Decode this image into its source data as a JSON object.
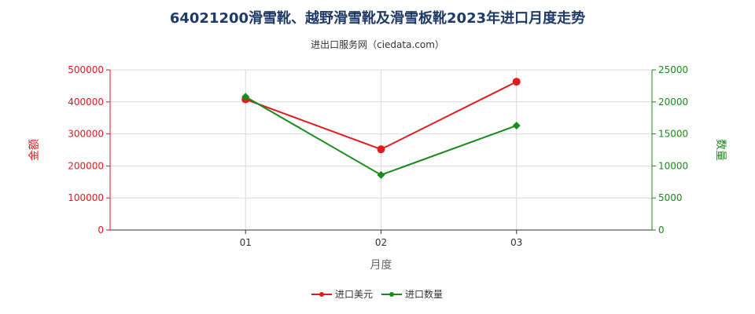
{
  "title": "64021200滑雪靴、越野滑雪靴及滑雪板靴2023年进口月度走势",
  "subtitle": "进出口服务网（ciedata.com）",
  "colors": {
    "left_axis": "#e31a1c",
    "right_axis": "#1a8a1a",
    "usd_series": "#e31a1c",
    "qty_series": "#1a8a1a",
    "grid": "#d9d9d9"
  },
  "chart_data": {
    "type": "line",
    "categories": [
      "01",
      "02",
      "03"
    ],
    "xlabel": "月度",
    "ylabel_left": "金额",
    "ylabel_right": "数量",
    "ylim_left": [
      0,
      500000
    ],
    "ylim_right": [
      0,
      25000
    ],
    "yticks_left": [
      "0",
      "100000",
      "200000",
      "300000",
      "400000",
      "500000"
    ],
    "yticks_right": [
      "0",
      "5000",
      "10000",
      "15000",
      "20000",
      "25000"
    ],
    "grid": true,
    "legend_position": "bottom",
    "series": [
      {
        "name": "进口美元",
        "axis": "left",
        "marker": "circle",
        "values": [
          408000,
          252000,
          463000
        ]
      },
      {
        "name": "进口数量",
        "axis": "right",
        "marker": "diamond",
        "values": [
          20800,
          8600,
          16300
        ]
      }
    ]
  }
}
